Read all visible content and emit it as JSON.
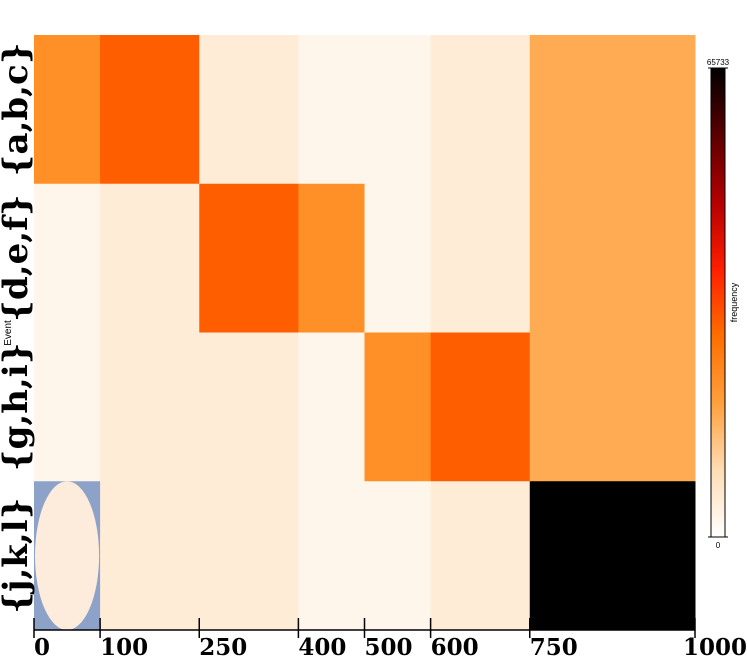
{
  "chart_data": {
    "type": "heatmap",
    "ylabel": "Event",
    "rows": [
      "{a,b,c}",
      "{d,e,f}",
      "{g,h,i}",
      "{j,k,l}"
    ],
    "x_breaks": [
      0,
      100,
      250,
      400,
      500,
      600,
      750,
      1000
    ],
    "x_tick_labels": [
      "0",
      "100",
      "250",
      "400",
      "500",
      "600",
      "750",
      "1000"
    ],
    "values": [
      [
        22000,
        30000,
        5000,
        2500,
        2500,
        5000,
        17000
      ],
      [
        2500,
        5000,
        30000,
        22000,
        2500,
        5000,
        17000
      ],
      [
        2500,
        5000,
        5000,
        2500,
        22000,
        30000,
        17000
      ],
      [
        2500,
        5000,
        5000,
        2500,
        2500,
        5000,
        65733
      ]
    ],
    "colorbar": {
      "label": "frequency",
      "min": 0,
      "max": 65733,
      "min_label": "0",
      "max_label": "65733",
      "stops": [
        "#ffffff",
        "#ffdcb4",
        "#ffa03c",
        "#ff6e00",
        "#ff1e00",
        "#b40000",
        "#5a0000",
        "#000000"
      ]
    },
    "highlight": {
      "row": 3,
      "col": 0,
      "shape": "ellipse",
      "background": "#8da2c8",
      "fill": "#fdebdc"
    }
  }
}
